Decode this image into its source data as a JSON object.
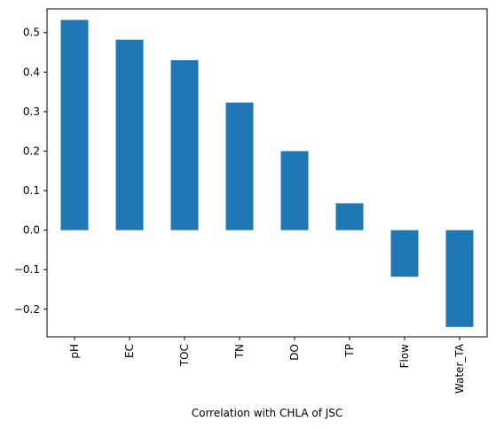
{
  "chart_data": {
    "type": "bar",
    "title": "",
    "xlabel": "Correlation with CHLA of JSC",
    "ylabel": "",
    "categories": [
      "pH",
      "EC",
      "TOC",
      "TN",
      "DO",
      "TP",
      "Flow",
      "Water_TA"
    ],
    "values": [
      0.532,
      0.482,
      0.43,
      0.323,
      0.2,
      0.068,
      -0.118,
      -0.245
    ],
    "ylim": [
      -0.27,
      0.56
    ],
    "yticks": [
      -0.2,
      -0.1,
      0.0,
      0.1,
      0.2,
      0.3,
      0.4,
      0.5
    ],
    "ytick_labels": [
      "−0.2",
      "−0.1",
      "0.0",
      "0.1",
      "0.2",
      "0.3",
      "0.4",
      "0.5"
    ],
    "bar_color": "#1f77b4",
    "grid": false,
    "legend": "none"
  }
}
